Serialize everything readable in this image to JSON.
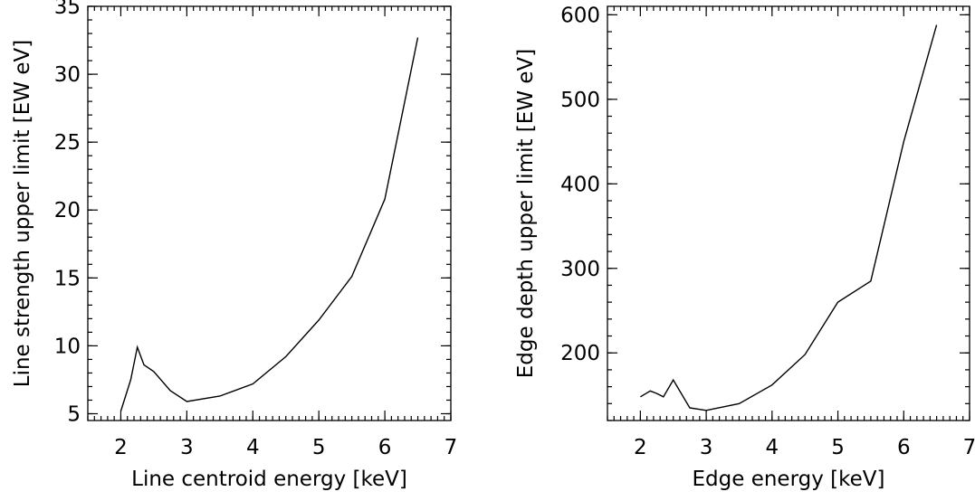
{
  "chart_data": [
    {
      "type": "line",
      "title": "",
      "xlabel": "Line centroid energy [keV]",
      "ylabel": "Line strength upper limit [EW eV]",
      "xlim": [
        1.5,
        7
      ],
      "ylim": [
        4.5,
        35
      ],
      "xticks": [
        2,
        3,
        4,
        5,
        6,
        7
      ],
      "yticks": [
        5,
        10,
        15,
        20,
        25,
        30,
        35
      ],
      "x_minor_step": 0.1,
      "y_minor_step": 1,
      "grid": false,
      "series": [
        {
          "x": [
            2.0,
            2.15,
            2.25,
            2.35,
            2.5,
            2.75,
            3.0,
            3.5,
            4.0,
            4.5,
            5.0,
            5.5,
            6.0,
            6.5
          ],
          "y": [
            5.2,
            7.5,
            9.9,
            8.6,
            8.1,
            6.7,
            5.9,
            6.3,
            7.2,
            9.2,
            11.9,
            15.1,
            20.8,
            32.7
          ]
        }
      ]
    },
    {
      "type": "line",
      "title": "",
      "xlabel": "Edge energy [keV]",
      "ylabel": "Edge depth upper limit [EW eV]",
      "xlim": [
        1.5,
        7
      ],
      "ylim": [
        120,
        610
      ],
      "xticks": [
        2,
        3,
        4,
        5,
        6,
        7
      ],
      "yticks": [
        200,
        300,
        400,
        500,
        600
      ],
      "x_minor_step": 0.1,
      "y_minor_step": 20,
      "grid": false,
      "series": [
        {
          "x": [
            2.0,
            2.15,
            2.25,
            2.35,
            2.5,
            2.75,
            3.0,
            3.5,
            4.0,
            4.5,
            5.0,
            5.5,
            6.0,
            6.5
          ],
          "y": [
            148,
            155,
            152,
            148,
            168,
            135,
            132,
            140,
            162,
            198,
            260,
            285,
            450,
            588
          ]
        }
      ]
    }
  ]
}
